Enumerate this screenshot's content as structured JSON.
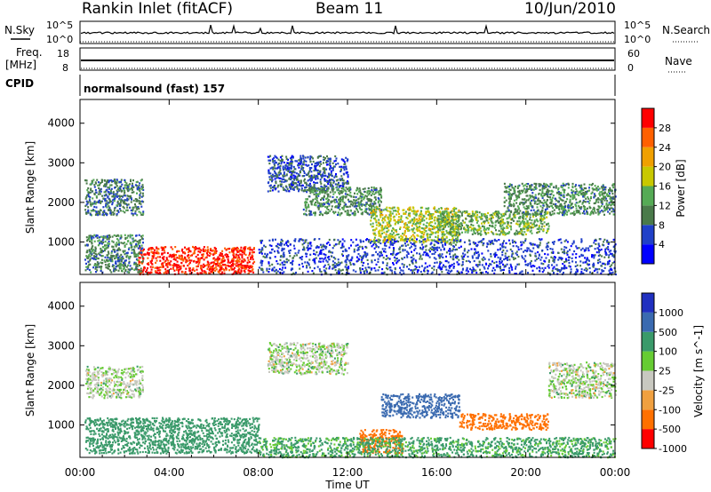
{
  "header": {
    "station": "Rankin Inlet (fitACF)",
    "beam": "Beam 11",
    "date": "10/Jun/2010"
  },
  "noise_panel": {
    "left_label": "N.Sky",
    "right_label": "N.Search",
    "tick_top": "10^5",
    "tick_bottom": "10^0",
    "right_tick_top": "10^5",
    "right_tick_bottom": "10^0"
  },
  "freq_panel": {
    "left_label_1": "Freq.",
    "left_label_2": "[MHz]",
    "right_label": "Nave",
    "left_ticks": [
      "18",
      "8"
    ],
    "right_ticks": [
      "60",
      "0"
    ]
  },
  "cpid_panel": {
    "label": "CPID",
    "text": "normalsound (fast) 157"
  },
  "x_axis": {
    "label": "Time UT",
    "ticks": [
      "00:00",
      "04:00",
      "08:00",
      "12:00",
      "16:00",
      "20:00",
      "00:00"
    ]
  },
  "power_panel": {
    "ylabel": "Slant Range [km]",
    "yticks": [
      "4000",
      "3000",
      "2000",
      "1000"
    ],
    "colorbar_label": "Power [dB]",
    "colorbar_ticks": [
      "28",
      "24",
      "20",
      "16",
      "12",
      "8",
      "4"
    ],
    "colors": [
      "#0000ff",
      "#2040c8",
      "#4a7a4a",
      "#55aa55",
      "#c8c800",
      "#f0a000",
      "#ff6000",
      "#ff0000"
    ]
  },
  "velocity_panel": {
    "ylabel": "Slant Range [km]",
    "yticks": [
      "4000",
      "3000",
      "2000",
      "1000"
    ],
    "colorbar_label": "Velocity [m s^-1]",
    "colorbar_ticks": [
      "1000",
      "500",
      "100",
      "25",
      "-25",
      "-100",
      "-500",
      "-1000"
    ],
    "colors": [
      "#2030c0",
      "#3a6ab0",
      "#3a9a6a",
      "#66cc33",
      "#c8c8c0",
      "#f0a040",
      "#ff7000",
      "#ff0000"
    ]
  },
  "chart_data": {
    "type": "heatmap",
    "x_range_hours": [
      0,
      24
    ],
    "y_range_km": [
      180,
      4600
    ],
    "power_regions": [
      {
        "t0": 2.6,
        "t1": 7.8,
        "r0": 200,
        "r1": 900,
        "power_db": 29
      },
      {
        "t0": 0.2,
        "t1": 2.8,
        "r0": 250,
        "r1": 1200,
        "power_db": 10
      },
      {
        "t0": 0.2,
        "t1": 2.8,
        "r0": 1700,
        "r1": 2600,
        "power_db": 9
      },
      {
        "t0": 8.4,
        "t1": 12.0,
        "r0": 2300,
        "r1": 3200,
        "power_db": 7
      },
      {
        "t0": 10.0,
        "t1": 13.5,
        "r0": 1700,
        "r1": 2400,
        "power_db": 11
      },
      {
        "t0": 13.0,
        "t1": 17.0,
        "r0": 1000,
        "r1": 1900,
        "power_db": 17
      },
      {
        "t0": 16.0,
        "t1": 21.0,
        "r0": 1200,
        "r1": 1800,
        "power_db": 14
      },
      {
        "t0": 19.0,
        "t1": 24.0,
        "r0": 1700,
        "r1": 2500,
        "power_db": 11
      },
      {
        "t0": 8.0,
        "t1": 24.0,
        "r0": 200,
        "r1": 1100,
        "power_db": 6
      }
    ],
    "velocity_regions": [
      {
        "t0": 0.2,
        "t1": 2.8,
        "r0": 1700,
        "r1": 2500,
        "velocity": 0
      },
      {
        "t0": 0.2,
        "t1": 8.0,
        "r0": 300,
        "r1": 1200,
        "velocity": 60
      },
      {
        "t0": 8.4,
        "t1": 12.0,
        "r0": 2300,
        "r1": 3100,
        "velocity": 0
      },
      {
        "t0": 13.5,
        "t1": 17.0,
        "r0": 1200,
        "r1": 1800,
        "velocity": 400
      },
      {
        "t0": 12.5,
        "t1": 14.5,
        "r0": 300,
        "r1": 900,
        "velocity": -300
      },
      {
        "t0": 17.0,
        "t1": 21.0,
        "r0": 900,
        "r1": 1300,
        "velocity": -200
      },
      {
        "t0": 21.0,
        "t1": 24.0,
        "r0": 1700,
        "r1": 2600,
        "velocity": 0
      },
      {
        "t0": 8.0,
        "t1": 24.0,
        "r0": 200,
        "r1": 700,
        "velocity": 40
      }
    ]
  }
}
